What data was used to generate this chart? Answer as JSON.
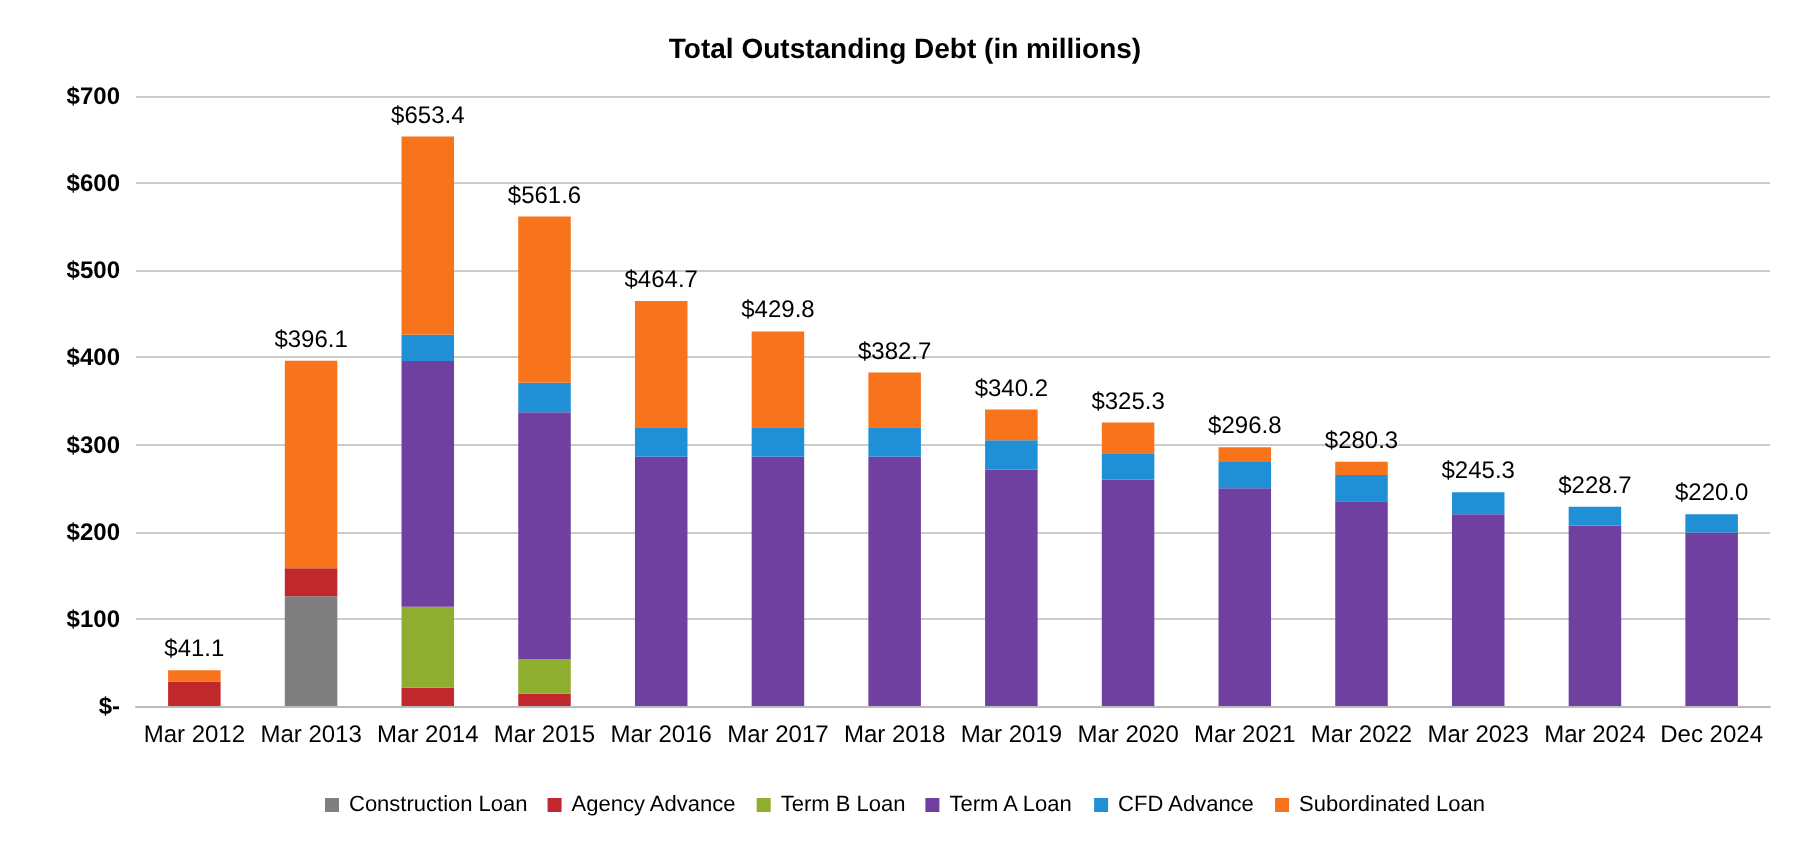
{
  "chart_data": {
    "type": "bar",
    "title": "Total Outstanding Debt (in millions)",
    "stacked": true,
    "categories": [
      "Mar 2012",
      "Mar 2013",
      "Mar 2014",
      "Mar 2015",
      "Mar 2016",
      "Mar 2017",
      "Mar 2018",
      "Mar 2019",
      "Mar 2020",
      "Mar 2021",
      "Mar 2022",
      "Mar 2023",
      "Mar 2024",
      "Dec 2024"
    ],
    "series": [
      {
        "name": "Construction Loan",
        "color": "#7f7f7f",
        "values": [
          null,
          126,
          null,
          null,
          null,
          null,
          null,
          null,
          null,
          null,
          null,
          null,
          null,
          null
        ]
      },
      {
        "name": "Agency Advance",
        "color": "#c0282d",
        "values": [
          28,
          32,
          21,
          14,
          null,
          null,
          null,
          null,
          null,
          null,
          null,
          null,
          null,
          null
        ]
      },
      {
        "name": "Term B Loan",
        "color": "#8fad2e",
        "values": [
          null,
          null,
          93,
          40,
          null,
          null,
          null,
          null,
          null,
          null,
          null,
          null,
          null,
          null
        ]
      },
      {
        "name": "Term A Loan",
        "color": "#7040a0",
        "values": [
          null,
          null,
          282,
          283,
          286,
          286,
          286,
          271,
          260,
          250,
          235,
          220,
          207,
          199
        ]
      },
      {
        "name": "CFD Advance",
        "color": "#1f8fd6",
        "values": [
          null,
          null,
          30,
          34,
          34,
          34,
          34,
          34,
          30,
          30,
          30,
          25.3,
          21.7,
          21
        ]
      },
      {
        "name": "Subordinated Loan",
        "color": "#f7731c",
        "values": [
          13.1,
          238.1,
          227.4,
          190.6,
          144.7,
          109.8,
          62.7,
          35.2,
          35.3,
          16.8,
          15.3,
          null,
          null,
          null
        ]
      }
    ],
    "totals": [
      "$41.1",
      "$396.1",
      "$653.4",
      "$561.6",
      "$464.7",
      "$429.8",
      "$382.7",
      "$340.2",
      "$325.3",
      "$296.8",
      "$280.3",
      "$245.3",
      "$228.7",
      "$220.0"
    ],
    "ylim": [
      0,
      700
    ],
    "yticks": [
      {
        "value": 0,
        "label": "$-"
      },
      {
        "value": 100,
        "label": "$100"
      },
      {
        "value": 200,
        "label": "$200"
      },
      {
        "value": 300,
        "label": "$300"
      },
      {
        "value": 400,
        "label": "$400"
      },
      {
        "value": 500,
        "label": "$500"
      },
      {
        "value": 600,
        "label": "$600"
      },
      {
        "value": 700,
        "label": "$700"
      }
    ],
    "grid": "y",
    "legend": "bottom"
  }
}
